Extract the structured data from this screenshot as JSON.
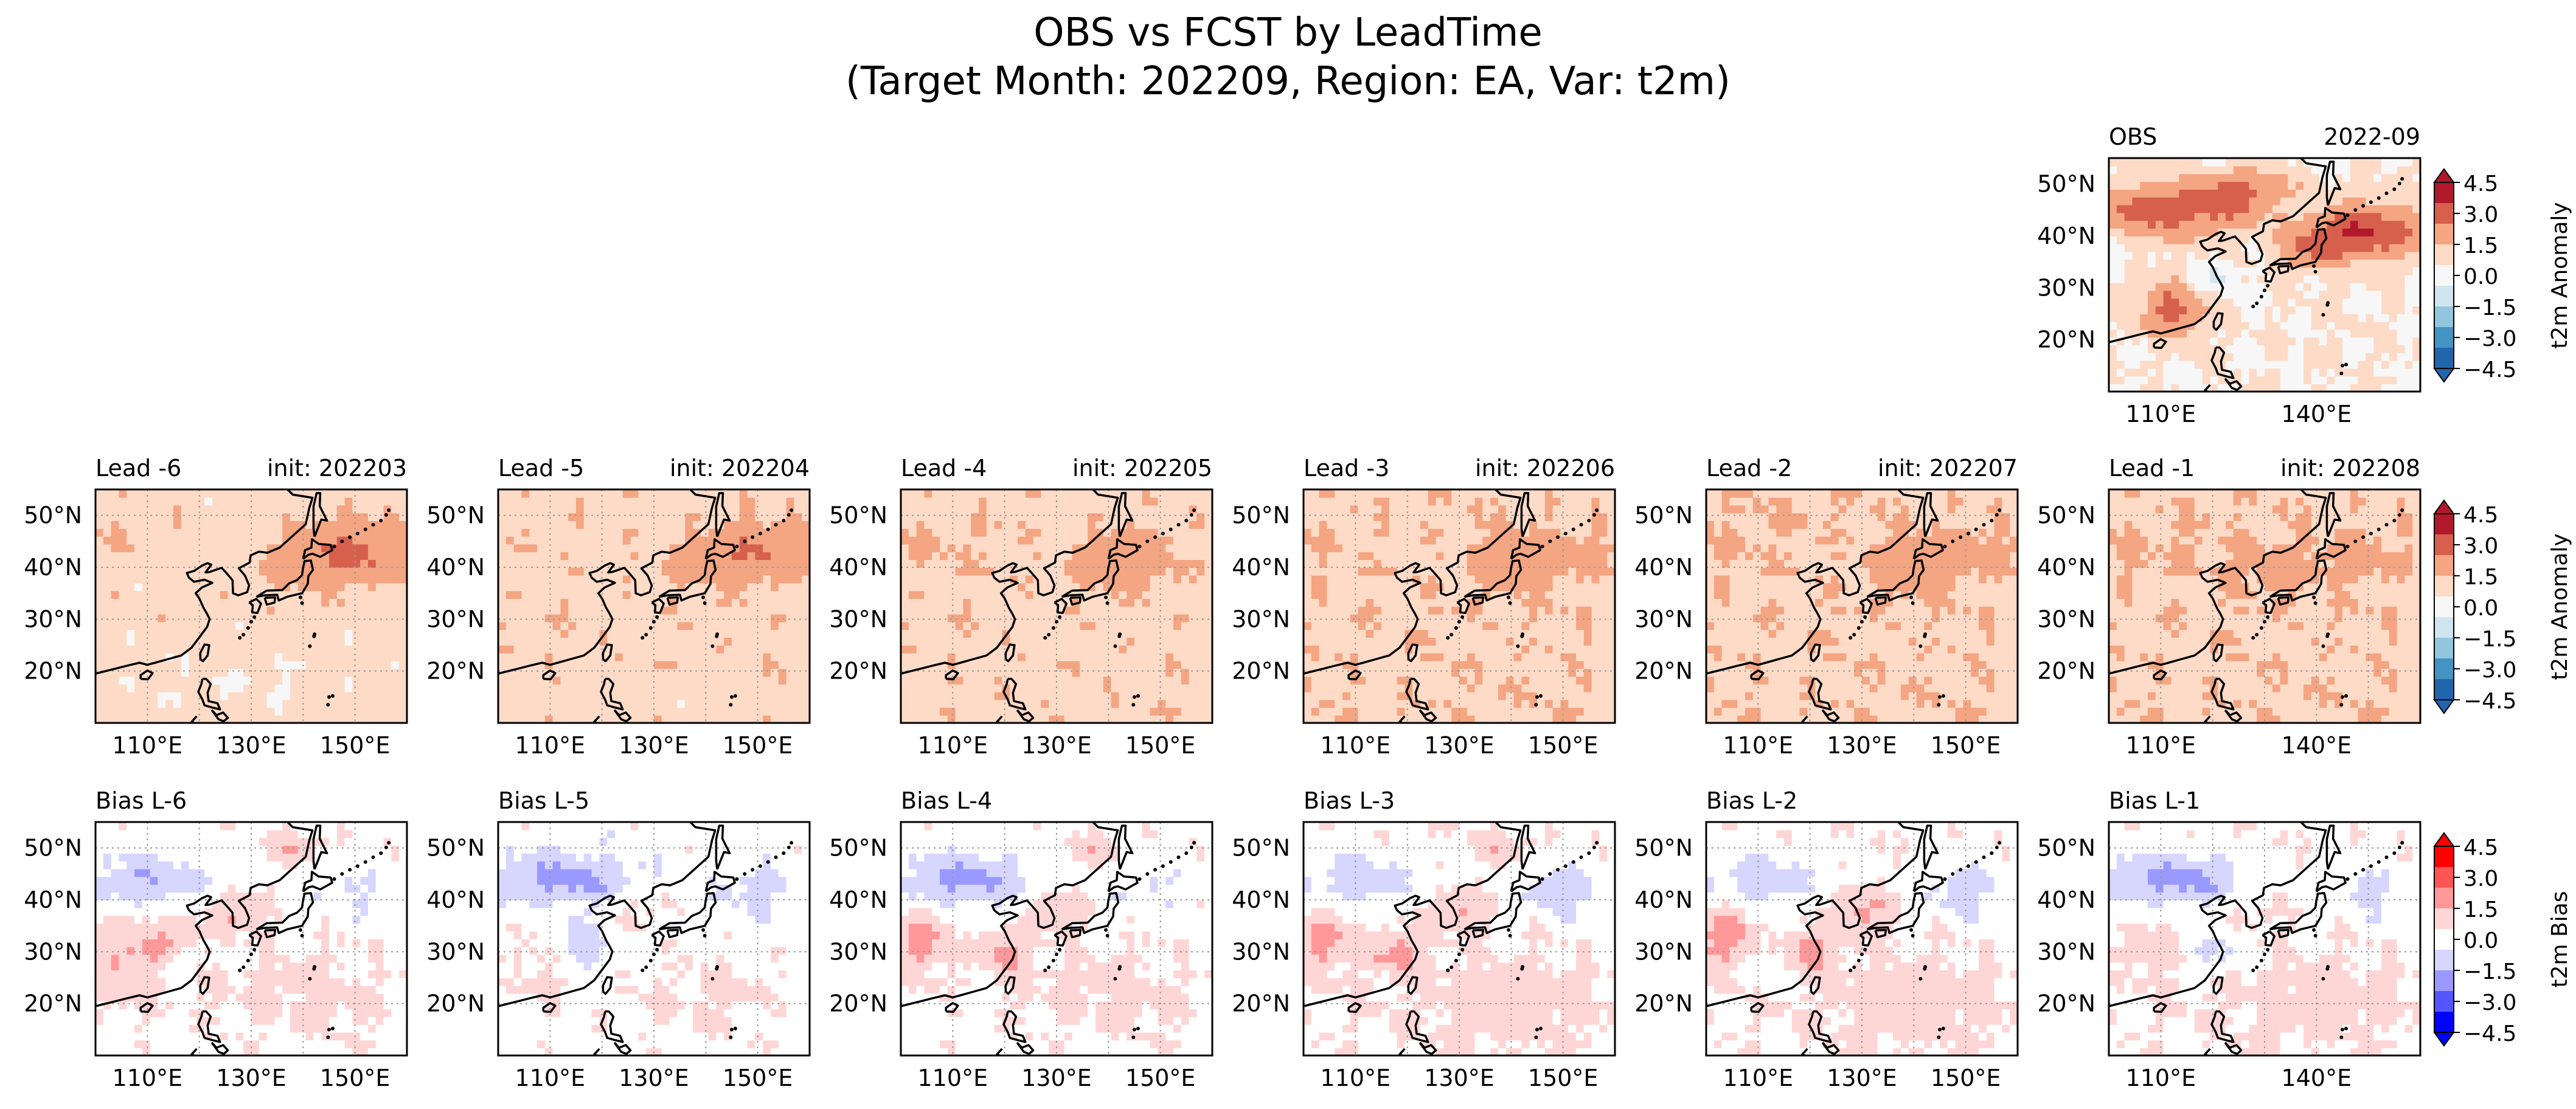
{
  "figure": {
    "title_line1": "OBS vs FCST by LeadTime",
    "title_line2": "(Target Month: 202209, Region: EA, Var: t2m)"
  },
  "chart_data": [
    {
      "type": "heatmap",
      "panel": "obs",
      "title_left": "OBS",
      "title_right": "2022-09",
      "lat_ticks": [
        "50°N",
        "40°N",
        "30°N",
        "20°N"
      ],
      "lon_ticks": [
        "110°E",
        "140°E"
      ],
      "grid": false,
      "colormap": "RdBu_r",
      "anomaly_description": "warm over northern China and Mongolia (about +3), warm over Japan and east of Japan (about +3 to +4.5), warm over southern China (about +1.5 to +3), slight cool over central-east China (about -1), near-neutral over the subtropical Pacific"
    },
    {
      "type": "heatmap",
      "panel": "lead",
      "title_left": "Lead -6",
      "title_right": "init: 202203",
      "lat_ticks": [
        "50°N",
        "40°N",
        "30°N",
        "20°N"
      ],
      "lon_ticks": [
        "110°E",
        "130°E",
        "150°E"
      ],
      "grid": true,
      "colormap": "RdBu_r",
      "anomaly_description": "weak warm (about +0.5 to +1.5) everywhere, strongest east of Japan (about +3)"
    },
    {
      "type": "heatmap",
      "panel": "lead",
      "title_left": "Lead -5",
      "title_right": "init: 202204",
      "lat_ticks": [
        "50°N",
        "40°N",
        "30°N",
        "20°N"
      ],
      "lon_ticks": [
        "110°E",
        "130°E",
        "150°E"
      ],
      "grid": true,
      "colormap": "RdBu_r",
      "anomaly_description": "weak warm (about +0.5 to +1.5) everywhere, strongest east of Japan (about +2.5)"
    },
    {
      "type": "heatmap",
      "panel": "lead",
      "title_left": "Lead -4",
      "title_right": "init: 202205",
      "lat_ticks": [
        "50°N",
        "40°N",
        "30°N",
        "20°N"
      ],
      "lon_ticks": [
        "110°E",
        "130°E",
        "150°E"
      ],
      "grid": true,
      "colormap": "RdBu_r",
      "anomaly_description": "weak warm (about +1) everywhere, strongest around northern Japan (about +2.5)"
    },
    {
      "type": "heatmap",
      "panel": "lead",
      "title_left": "Lead -3",
      "title_right": "init: 202206",
      "lat_ticks": [
        "50°N",
        "40°N",
        "30°N",
        "20°N"
      ],
      "lon_ticks": [
        "110°E",
        "130°E",
        "150°E"
      ],
      "grid": true,
      "colormap": "RdBu_r",
      "anomaly_description": "weak warm (about +1) everywhere, strongest around Japan (about +2)"
    },
    {
      "type": "heatmap",
      "panel": "lead",
      "title_left": "Lead -2",
      "title_right": "init: 202207",
      "lat_ticks": [
        "50°N",
        "40°N",
        "30°N",
        "20°N"
      ],
      "lon_ticks": [
        "110°E",
        "130°E",
        "150°E"
      ],
      "grid": true,
      "colormap": "RdBu_r",
      "anomaly_description": "weak warm (about +1 to +1.5) everywhere, strongest around Japan (about +2.5)"
    },
    {
      "type": "heatmap",
      "panel": "lead",
      "title_left": "Lead -1",
      "title_right": "init: 202208",
      "lat_ticks": [
        "50°N",
        "40°N",
        "30°N",
        "20°N"
      ],
      "lon_ticks": [
        "110°E",
        "140°E"
      ],
      "grid": true,
      "colormap": "RdBu_r",
      "anomaly_description": "weak warm (about +1 to +1.5) everywhere, strongest around Korea and Japan (about +2)"
    },
    {
      "type": "heatmap",
      "panel": "bias",
      "title_left": "Bias L-6",
      "title_right": "",
      "lat_ticks": [
        "50°N",
        "40°N",
        "30°N",
        "20°N"
      ],
      "lon_ticks": [
        "110°E",
        "130°E",
        "150°E"
      ],
      "grid": true,
      "colormap": "bwr",
      "bias_description": "negative (about -1.5) over northern China and Mongolia, positive (about +1.5) over southern/eastern China and Korea, weak negative east of Japan"
    },
    {
      "type": "heatmap",
      "panel": "bias",
      "title_left": "Bias L-5",
      "title_right": "",
      "lat_ticks": [
        "50°N",
        "40°N",
        "30°N",
        "20°N"
      ],
      "lon_ticks": [
        "110°E",
        "130°E",
        "150°E"
      ],
      "grid": true,
      "colormap": "bwr",
      "bias_description": "negative (about -2) over northern China and Mongolia, weak positive over southern China, weak negative east of Japan"
    },
    {
      "type": "heatmap",
      "panel": "bias",
      "title_left": "Bias L-4",
      "title_right": "",
      "lat_ticks": [
        "50°N",
        "40°N",
        "30°N",
        "20°N"
      ],
      "lon_ticks": [
        "110°E",
        "130°E",
        "150°E"
      ],
      "grid": true,
      "colormap": "bwr",
      "bias_description": "negative (about -2) over northern China and Mongolia, positive (about +2) over southern China and Korea, weak negative east of Japan"
    },
    {
      "type": "heatmap",
      "panel": "bias",
      "title_left": "Bias L-3",
      "title_right": "",
      "lat_ticks": [
        "50°N",
        "40°N",
        "30°N",
        "20°N"
      ],
      "lon_ticks": [
        "110°E",
        "130°E",
        "150°E"
      ],
      "grid": true,
      "colormap": "bwr",
      "bias_description": "negative (about -1.5) over northern China, positive (about +1.5) over southern China and Korea, negative (about -1.5) east of Japan"
    },
    {
      "type": "heatmap",
      "panel": "bias",
      "title_left": "Bias L-2",
      "title_right": "",
      "lat_ticks": [
        "50°N",
        "40°N",
        "30°N",
        "20°N"
      ],
      "lon_ticks": [
        "110°E",
        "130°E",
        "150°E"
      ],
      "grid": true,
      "colormap": "bwr",
      "bias_description": "negative (about -1.5) over northern China, positive (about +2) over southern China and Korea, negative (about -1.5) east of Japan"
    },
    {
      "type": "heatmap",
      "panel": "bias",
      "title_left": "Bias L-1",
      "title_right": "",
      "lat_ticks": [
        "50°N",
        "40°N",
        "30°N",
        "20°N"
      ],
      "lon_ticks": [
        "110°E",
        "140°E"
      ],
      "grid": true,
      "colormap": "bwr",
      "bias_description": "negative (about -2) over northern China and Mongolia, weak positive (about +1) over southern China and the tropics, weak negative east of Japan"
    }
  ],
  "colorbars": [
    {
      "label": "t2m Anomaly",
      "ticks": [
        "4.5",
        "3.0",
        "1.5",
        "0.0",
        "−1.5",
        "−3.0",
        "−4.5"
      ],
      "colors": [
        "#b2182b",
        "#d6604d",
        "#f4a582",
        "#fddbc7",
        "#f7f7f7",
        "#d1e5f0",
        "#92c5de",
        "#4393c3",
        "#2166ac"
      ],
      "extend": "both"
    },
    {
      "label": "t2m Anomaly",
      "ticks": [
        "4.5",
        "3.0",
        "1.5",
        "0.0",
        "−1.5",
        "−3.0",
        "−4.5"
      ],
      "colors": [
        "#b2182b",
        "#d6604d",
        "#f4a582",
        "#fddbc7",
        "#f7f7f7",
        "#d1e5f0",
        "#92c5de",
        "#4393c3",
        "#2166ac"
      ],
      "extend": "both"
    },
    {
      "label": "t2m Bias",
      "ticks": [
        "4.5",
        "3.0",
        "1.5",
        "0.0",
        "−1.5",
        "−3.0",
        "−4.5"
      ],
      "colors": [
        "#ff0000",
        "#ff5555",
        "#ff9999",
        "#ffd6d6",
        "#ffffff",
        "#d6d6ff",
        "#9999ff",
        "#5555ff",
        "#0000ff"
      ],
      "extend": "both"
    }
  ]
}
